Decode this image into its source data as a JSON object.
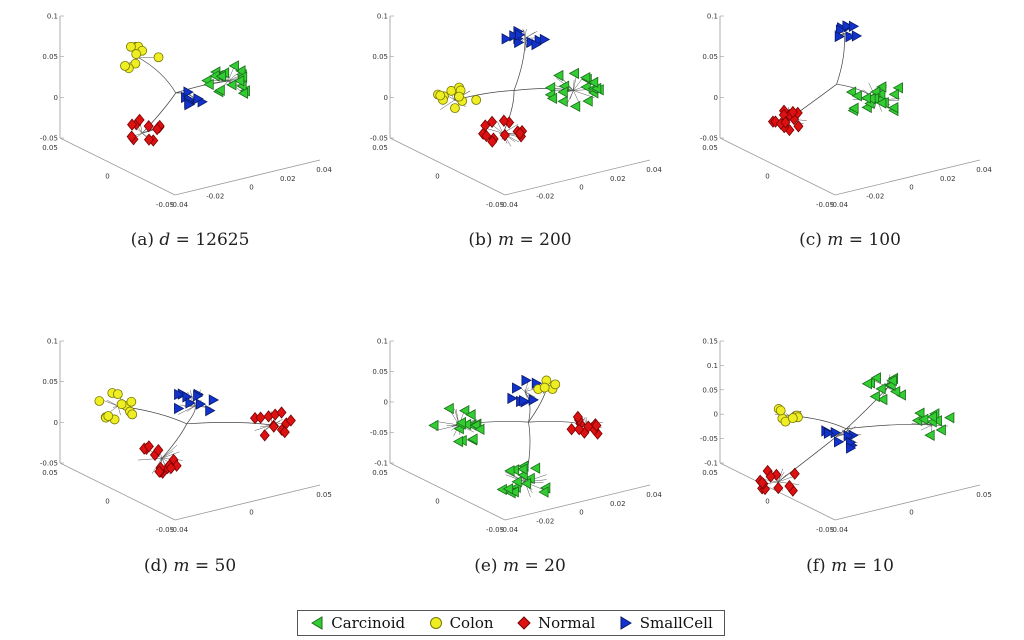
{
  "chart_data": [
    {
      "type": "scatter",
      "caption": "(a) d = 12625",
      "caption_prefix": "(a)",
      "caption_var": "d",
      "caption_rest": " = 12625",
      "z_ticks": [
        "0.1",
        "0.05",
        "0",
        "-0.05"
      ],
      "y_ticks": [
        "0.05",
        "0",
        "-0.05"
      ],
      "x_ticks": [
        "-0.04",
        "-0.02",
        "0",
        "0.02",
        "0.04"
      ],
      "clusters": [
        {
          "class": "Colon",
          "center": [
            -0.026,
            0.0,
            0.045
          ],
          "count": 9,
          "spread": 0.012
        },
        {
          "class": "Normal",
          "center": [
            -0.024,
            0.0,
            -0.035
          ],
          "count": 12,
          "spread": 0.012
        },
        {
          "class": "SmallCell",
          "center": [
            0.0,
            0.0,
            0.0
          ],
          "count": 9,
          "spread": 0.008
        },
        {
          "class": "Carcinoid",
          "center": [
            0.015,
            0.0,
            0.02
          ],
          "count": 18,
          "spread": 0.014
        }
      ]
    },
    {
      "type": "scatter",
      "caption": "(b) m = 200",
      "caption_prefix": "(b)",
      "caption_var": "m",
      "caption_rest": " = 200",
      "z_ticks": [
        "0.1",
        "0.05",
        "0",
        "-0.05"
      ],
      "y_ticks": [
        "0.05",
        "0",
        "-0.05"
      ],
      "x_ticks": [
        "-0.04",
        "-0.02",
        "0",
        "0.02",
        "0.04"
      ],
      "clusters": [
        {
          "class": "Colon",
          "center": [
            -0.032,
            0.0,
            0.0
          ],
          "count": 11,
          "spread": 0.012
        },
        {
          "class": "Normal",
          "center": [
            -0.01,
            0.0,
            -0.035
          ],
          "count": 14,
          "spread": 0.012
        },
        {
          "class": "SmallCell",
          "center": [
            0.0,
            0.0,
            0.065
          ],
          "count": 10,
          "spread": 0.012
        },
        {
          "class": "Carcinoid",
          "center": [
            0.022,
            0.0,
            0.01
          ],
          "count": 18,
          "spread": 0.015
        }
      ]
    },
    {
      "type": "scatter",
      "caption": "(c) m = 100",
      "caption_prefix": "(c)",
      "caption_var": "m",
      "caption_rest": " = 100",
      "z_ticks": [
        "0.1",
        "0.05",
        "0",
        "-0.05"
      ],
      "y_ticks": [
        "0.05",
        "0",
        "-0.05"
      ],
      "x_ticks": [
        "-0.04",
        "-0.02",
        "0",
        "0.02",
        "0.04"
      ],
      "clusters": [
        {
          "class": "Normal",
          "center": [
            -0.03,
            0.0,
            -0.02
          ],
          "count": 14,
          "spread": 0.01
        },
        {
          "class": "SmallCell",
          "center": [
            -0.005,
            0.0,
            0.07
          ],
          "count": 8,
          "spread": 0.008
        },
        {
          "class": "Carcinoid",
          "center": [
            0.01,
            0.0,
            0.0
          ],
          "count": 20,
          "spread": 0.016
        }
      ]
    },
    {
      "type": "scatter",
      "caption": "(d) m = 50",
      "caption_prefix": "(d)",
      "caption_var": "m",
      "caption_rest": " = 50",
      "z_ticks": [
        "0.1",
        "0.05",
        "0",
        "-0.05"
      ],
      "y_ticks": [
        "0.05",
        "0",
        "-0.05"
      ],
      "x_ticks": [
        "-0.04",
        "0",
        "0.05"
      ],
      "clusters": [
        {
          "class": "Colon",
          "center": [
            -0.035,
            0.0,
            0.02
          ],
          "count": 12,
          "spread": 0.012
        },
        {
          "class": "Normal",
          "center": [
            -0.015,
            0.0,
            -0.035
          ],
          "count": 14,
          "spread": 0.014
        },
        {
          "class": "SmallCell",
          "center": [
            0.0,
            0.0,
            0.02
          ],
          "count": 10,
          "spread": 0.014
        },
        {
          "class": "Normal",
          "center": [
            0.035,
            0.0,
            0.0
          ],
          "count": 12,
          "spread": 0.012
        }
      ]
    },
    {
      "type": "scatter",
      "caption": "(e) m = 20",
      "caption_prefix": "(e)",
      "caption_var": "m",
      "caption_rest": " = 20",
      "z_ticks": [
        "0.1",
        "0.05",
        "0",
        "-0.05",
        "-0.1"
      ],
      "y_ticks": [
        "0.05",
        "0",
        "-0.05"
      ],
      "x_ticks": [
        "-0.04",
        "-0.02",
        "0",
        "0.02",
        "0.04"
      ],
      "clusters": [
        {
          "class": "Carcinoid",
          "center": [
            -0.03,
            0.0,
            0.0
          ],
          "count": 16,
          "spread": 0.015
        },
        {
          "class": "Carcinoid",
          "center": [
            0.0,
            0.0,
            -0.06
          ],
          "count": 16,
          "spread": 0.014
        },
        {
          "class": "SmallCell",
          "center": [
            0.0,
            0.0,
            0.035
          ],
          "count": 8,
          "spread": 0.01
        },
        {
          "class": "Colon",
          "center": [
            0.01,
            0.0,
            0.04
          ],
          "count": 5,
          "spread": 0.008
        },
        {
          "class": "Normal",
          "center": [
            0.028,
            0.0,
            0.0
          ],
          "count": 12,
          "spread": 0.01
        }
      ]
    },
    {
      "type": "scatter",
      "caption": "(f) m = 10",
      "caption_prefix": "(f)",
      "caption_var": "m",
      "caption_rest": " = 10",
      "z_ticks": [
        "0.15",
        "0.1",
        "0.05",
        "0",
        "-0.05",
        "-0.1"
      ],
      "y_ticks": [
        "0.05",
        "0",
        "-0.05"
      ],
      "x_ticks": [
        "-0.04",
        "0",
        "0.05"
      ],
      "clusters": [
        {
          "class": "Colon",
          "center": [
            -0.03,
            0.0,
            0.01
          ],
          "count": 7,
          "spread": 0.008
        },
        {
          "class": "Normal",
          "center": [
            -0.035,
            0.0,
            -0.06
          ],
          "count": 12,
          "spread": 0.012
        },
        {
          "class": "SmallCell",
          "center": [
            -0.005,
            0.0,
            -0.01
          ],
          "count": 9,
          "spread": 0.012
        },
        {
          "class": "Carcinoid",
          "center": [
            0.015,
            0.0,
            0.04
          ],
          "count": 12,
          "spread": 0.012
        },
        {
          "class": "Carcinoid",
          "center": [
            0.035,
            0.0,
            0.0
          ],
          "count": 10,
          "spread": 0.012
        }
      ]
    }
  ],
  "legend": [
    {
      "label": "Carcinoid",
      "marker": "triangle-left",
      "color": "#33cc33"
    },
    {
      "label": "Colon",
      "marker": "circle",
      "color": "#eeee22"
    },
    {
      "label": "Normal",
      "marker": "diamond",
      "color": "#dd1111"
    },
    {
      "label": "SmallCell",
      "marker": "triangle-right",
      "color": "#1133cc"
    }
  ]
}
